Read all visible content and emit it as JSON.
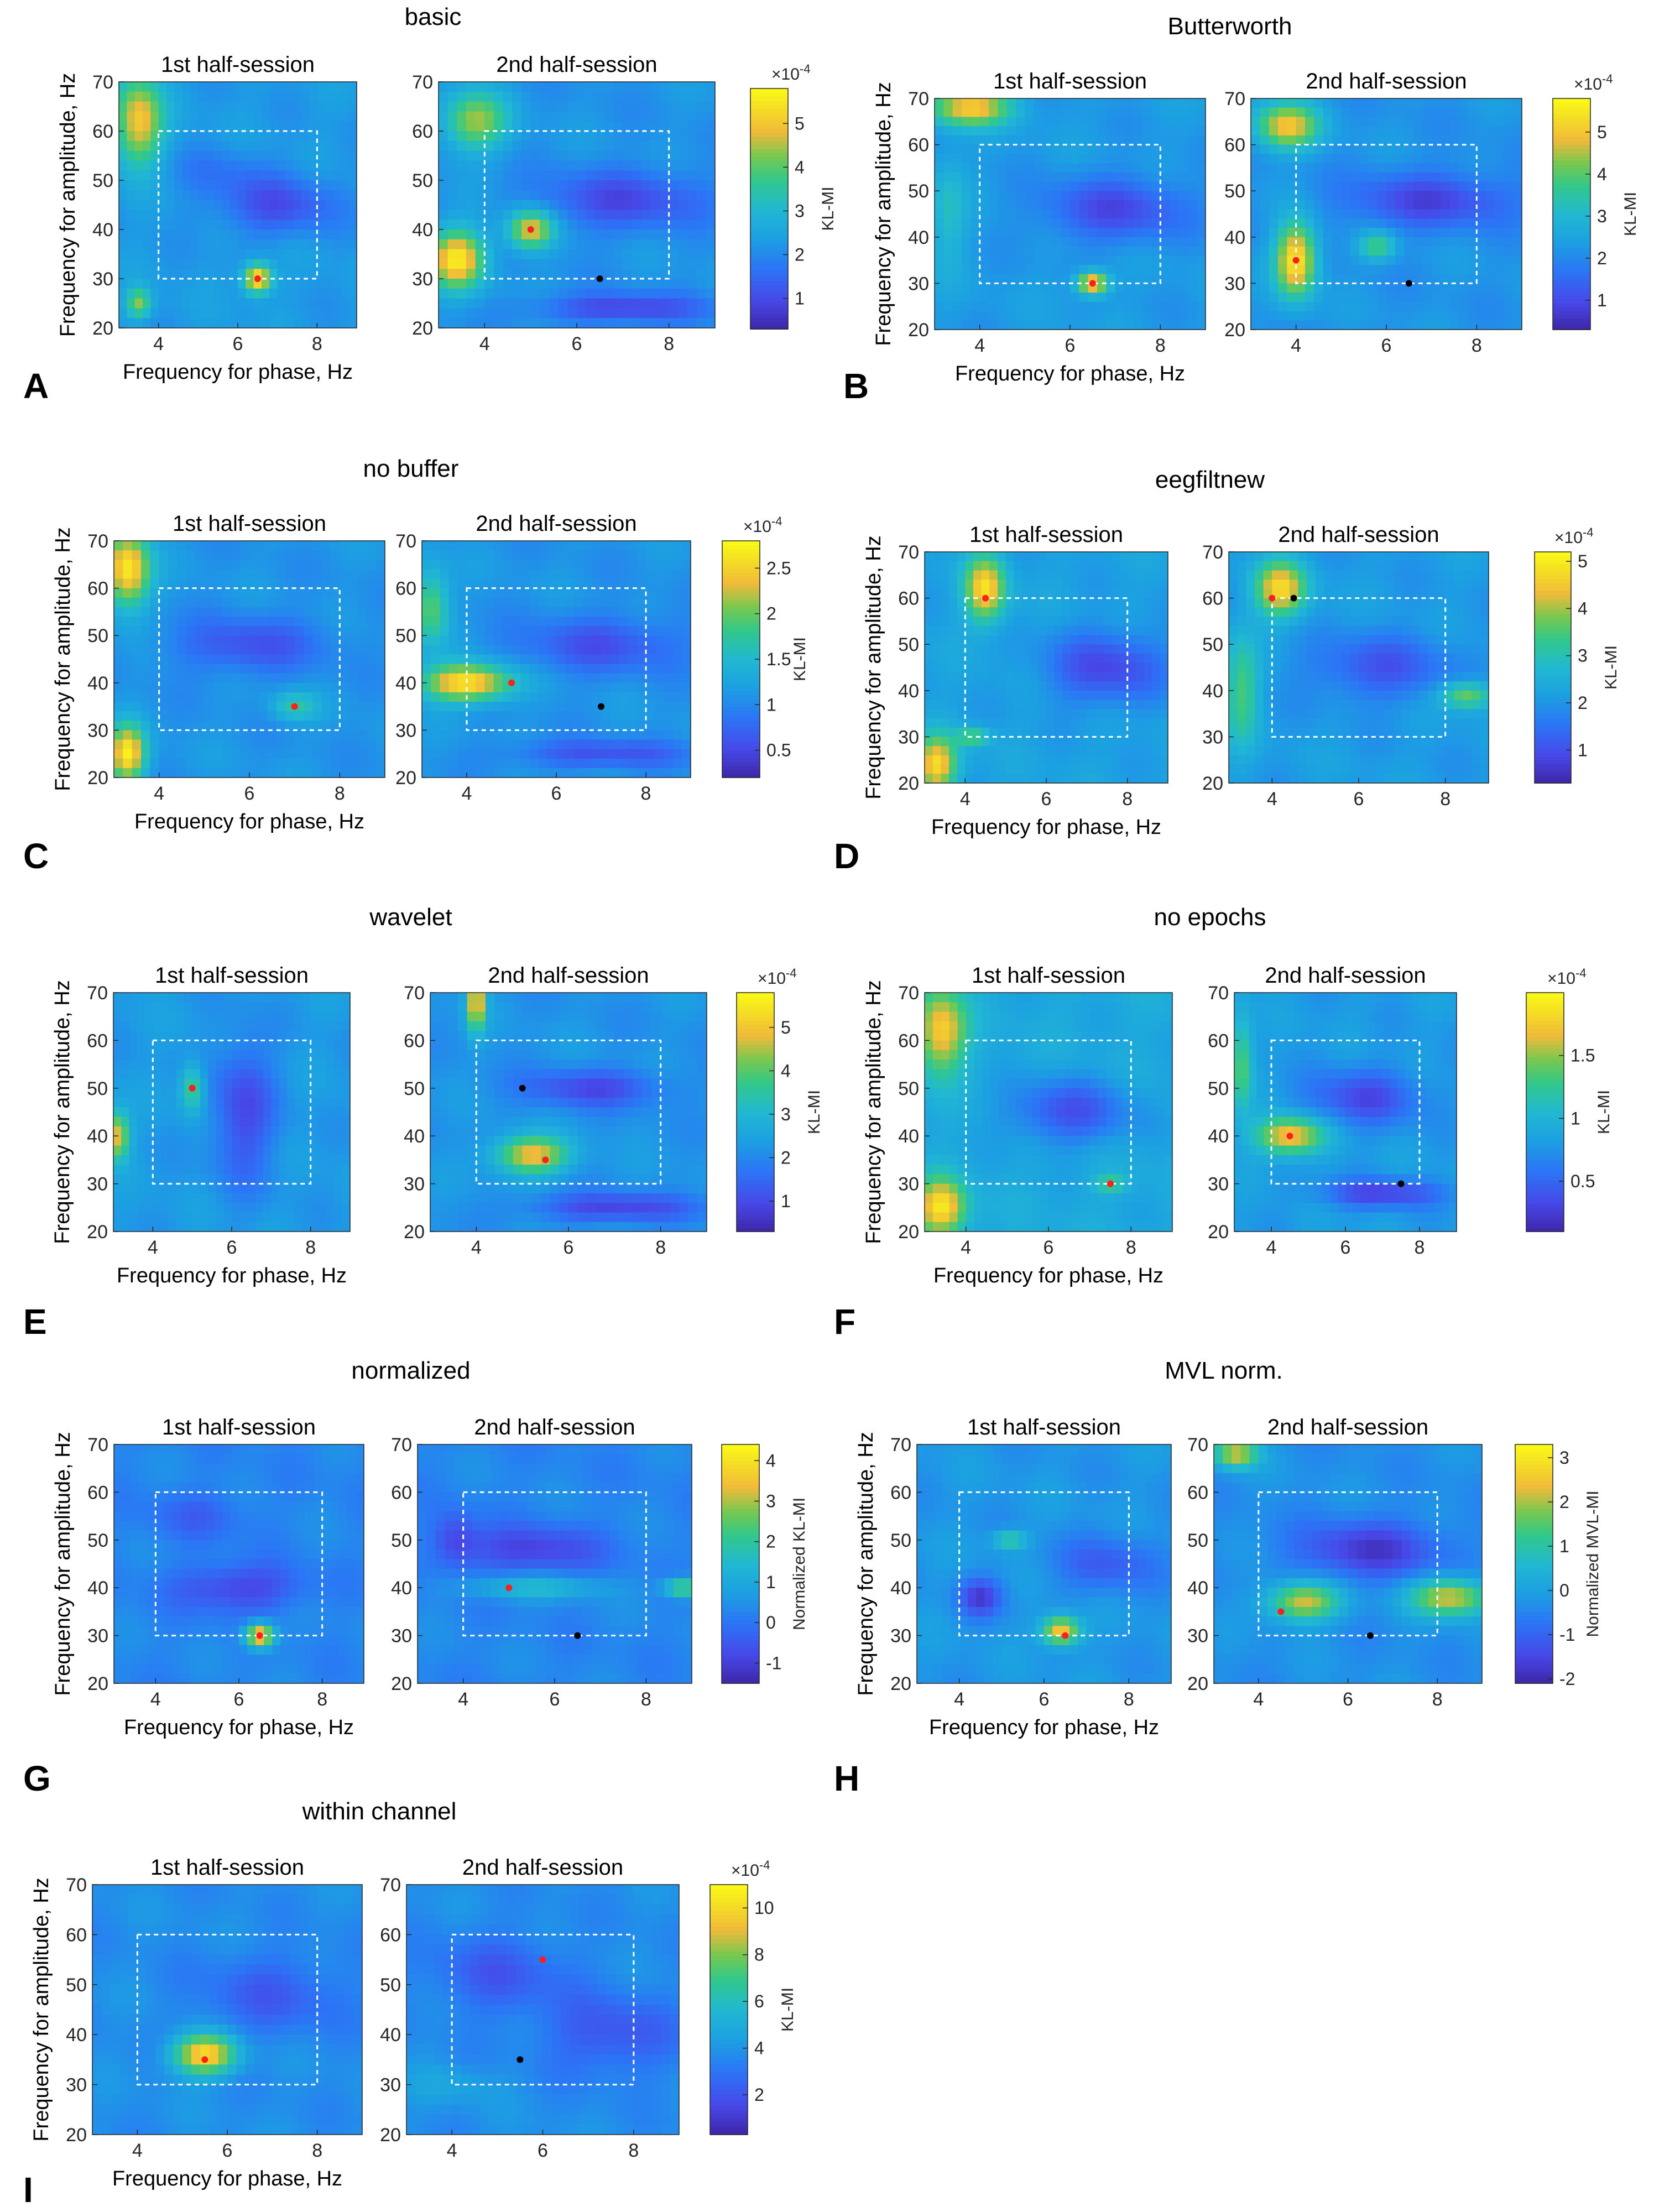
{
  "figure": {
    "panel_title_1": "1st half-session",
    "panel_title_2": "2nd half-session",
    "xlabel": "Frequency for phase, Hz",
    "ylabel": "Frequency for amplitude, Hz",
    "colors": {
      "low": "#3e26a8",
      "mid": "#21b8d2",
      "high": "#f9fb15",
      "roi": "#ffffff",
      "peak": "#ff1f1f",
      "ref": "#000000"
    }
  },
  "chart_data": [
    {
      "letter": "A",
      "title": "basic",
      "type": "heatmap",
      "xlim": [
        3,
        9
      ],
      "ylim": [
        20,
        70
      ],
      "xticks": [
        4,
        6,
        8
      ],
      "yticks": [
        20,
        30,
        40,
        50,
        60,
        70
      ],
      "roi": {
        "x": [
          4,
          8
        ],
        "y": [
          30,
          60
        ]
      },
      "colorbar": {
        "label": "KL-MI",
        "multiplier": "×10",
        "exponent": "-4",
        "range": [
          0.3,
          5.8
        ],
        "ticks": [
          "1",
          "2",
          "3",
          "4",
          "5"
        ],
        "tick_values": [
          1,
          2,
          3,
          4,
          5
        ]
      },
      "halves": [
        {
          "peak": [
            6.5,
            30
          ],
          "background": 2.3,
          "blobs": [
            [
              6.5,
              30,
              0.35,
              3,
              3.4
            ],
            [
              3.5,
              62,
              0.6,
              9,
              2.8
            ],
            [
              3.5,
              25,
              0.3,
              3,
              2
            ],
            [
              7,
              45,
              1.5,
              6,
              -1.2
            ],
            [
              5.5,
              52,
              1.2,
              5,
              -0.5
            ]
          ]
        },
        {
          "peak": [
            5,
            40
          ],
          "ref": [
            6.5,
            30
          ],
          "background": 2.2,
          "blobs": [
            [
              3.4,
              34,
              0.6,
              6,
              3.3
            ],
            [
              5,
              40,
              0.5,
              4,
              2.8
            ],
            [
              3.8,
              62,
              0.7,
              6,
              2.2
            ],
            [
              7,
              46,
              1.8,
              6,
              -1.2
            ],
            [
              7,
              24,
              1.8,
              3,
              -1.3
            ]
          ]
        }
      ]
    },
    {
      "letter": "B",
      "title": "Butterworth",
      "type": "heatmap",
      "xlim": [
        3,
        9
      ],
      "ylim": [
        20,
        70
      ],
      "xticks": [
        4,
        6,
        8
      ],
      "yticks": [
        20,
        30,
        40,
        50,
        60,
        70
      ],
      "roi": {
        "x": [
          4,
          8
        ],
        "y": [
          30,
          60
        ]
      },
      "colorbar": {
        "label": "KL-MI",
        "multiplier": "×10",
        "exponent": "-4",
        "range": [
          0.3,
          5.8
        ],
        "ticks": [
          "1",
          "2",
          "3",
          "4",
          "5"
        ],
        "tick_values": [
          1,
          2,
          3,
          4,
          5
        ]
      },
      "halves": [
        {
          "peak": [
            6.5,
            30
          ],
          "background": 2.3,
          "blobs": [
            [
              6.5,
              30,
              0.35,
              2.5,
              3.2
            ],
            [
              3.8,
              68,
              0.9,
              4,
              2.8
            ],
            [
              7,
              46,
              1.6,
              7,
              -1.3
            ],
            [
              3.3,
              45,
              0.4,
              12,
              0.9
            ]
          ]
        },
        {
          "peak": [
            4,
            35
          ],
          "ref": [
            6.5,
            30
          ],
          "background": 2.2,
          "blobs": [
            [
              4,
              35,
              0.45,
              8,
              3.4
            ],
            [
              3.8,
              64,
              0.7,
              5,
              2.8
            ],
            [
              5.8,
              38,
              0.4,
              3,
              1.6
            ],
            [
              7,
              48,
              1.8,
              6,
              -1.3
            ]
          ]
        }
      ]
    },
    {
      "letter": "C",
      "title": "no buffer",
      "type": "heatmap",
      "xlim": [
        3,
        9
      ],
      "ylim": [
        20,
        70
      ],
      "xticks": [
        4,
        6,
        8
      ],
      "yticks": [
        20,
        30,
        40,
        50,
        60,
        70
      ],
      "roi": {
        "x": [
          4,
          8
        ],
        "y": [
          30,
          60
        ]
      },
      "colorbar": {
        "label": "KL-MI",
        "multiplier": "×10",
        "exponent": "-4",
        "range": [
          0.2,
          2.8
        ],
        "ticks": [
          "0.5",
          "1",
          "1.5",
          "2",
          "2.5"
        ],
        "tick_values": [
          0.5,
          1,
          1.5,
          2,
          2.5
        ]
      },
      "halves": [
        {
          "peak": [
            7,
            35
          ],
          "background": 1.1,
          "blobs": [
            [
              3.3,
              64,
              0.5,
              8,
              1.6
            ],
            [
              3.3,
              25,
              0.4,
              6,
              1.6
            ],
            [
              7,
              35,
              0.5,
              3,
              0.6
            ],
            [
              6,
              48,
              1.6,
              6,
              -0.5
            ]
          ]
        },
        {
          "peak": [
            5,
            40
          ],
          "ref": [
            7,
            35
          ],
          "background": 1.1,
          "blobs": [
            [
              4,
              40,
              1,
              4,
              1.6
            ],
            [
              3.2,
              56,
              0.4,
              8,
              0.9
            ],
            [
              7,
              48,
              1.8,
              6,
              -0.5
            ],
            [
              7,
              25,
              2,
              3,
              -0.5
            ]
          ]
        }
      ]
    },
    {
      "letter": "D",
      "title": "eegfiltnew",
      "type": "heatmap",
      "xlim": [
        3,
        9
      ],
      "ylim": [
        20,
        70
      ],
      "xticks": [
        4,
        6,
        8
      ],
      "yticks": [
        20,
        30,
        40,
        50,
        60,
        70
      ],
      "roi": {
        "x": [
          4,
          8
        ],
        "y": [
          30,
          60
        ]
      },
      "colorbar": {
        "label": "KL-MI",
        "multiplier": "×10",
        "exponent": "-4",
        "range": [
          0.3,
          5.2
        ],
        "ticks": [
          "1",
          "2",
          "3",
          "4",
          "5"
        ],
        "tick_values": [
          1,
          2,
          3,
          4,
          5
        ]
      },
      "halves": [
        {
          "peak": [
            4.5,
            60
          ],
          "background": 2.2,
          "blobs": [
            [
              4.5,
              62,
              0.5,
              7,
              2.6
            ],
            [
              3.3,
              24,
              0.5,
              6,
              2.6
            ],
            [
              4.2,
              30,
              0.4,
              2,
              1.4
            ],
            [
              7.5,
              45,
              1.5,
              8,
              -1.3
            ]
          ]
        },
        {
          "peak": [
            4,
            60
          ],
          "ref": [
            4.5,
            60
          ],
          "background": 2.1,
          "blobs": [
            [
              4.2,
              62,
              0.6,
              6,
              2.6
            ],
            [
              3.3,
              40,
              0.4,
              12,
              1.4
            ],
            [
              8.5,
              39,
              0.6,
              3,
              1.8
            ],
            [
              6.5,
              45,
              1.6,
              7,
              -1
            ]
          ]
        }
      ]
    },
    {
      "letter": "E",
      "title": "wavelet",
      "type": "heatmap",
      "xlim": [
        3,
        9
      ],
      "ylim": [
        20,
        70
      ],
      "xticks": [
        4,
        6,
        8
      ],
      "yticks": [
        20,
        30,
        40,
        50,
        60,
        70
      ],
      "roi": {
        "x": [
          4,
          8
        ],
        "y": [
          30,
          60
        ]
      },
      "colorbar": {
        "label": "KL-MI",
        "multiplier": "×10",
        "exponent": "-4",
        "range": [
          0.3,
          5.8
        ],
        "ticks": [
          "1",
          "2",
          "3",
          "4",
          "5"
        ],
        "tick_values": [
          1,
          2,
          3,
          4,
          5
        ]
      },
      "halves": [
        {
          "peak": [
            5,
            50
          ],
          "background": 2.3,
          "blobs": [
            [
              5,
              50,
              0.3,
              5,
              1.6
            ],
            [
              3.1,
              40,
              0.3,
              5,
              2.6
            ],
            [
              6.3,
              45,
              0.8,
              15,
              -1.3
            ]
          ]
        },
        {
          "peak": [
            5.5,
            35
          ],
          "ref": [
            5,
            50
          ],
          "background": 2.2,
          "blobs": [
            [
              5.2,
              36,
              0.8,
              4,
              2.8
            ],
            [
              4,
              68,
              0.2,
              6,
              3
            ],
            [
              6.5,
              50,
              1.5,
              4,
              -1.2
            ],
            [
              7,
              25,
              1.8,
              3,
              -1.3
            ]
          ]
        }
      ]
    },
    {
      "letter": "F",
      "title": "no epochs",
      "type": "heatmap",
      "xlim": [
        3,
        9
      ],
      "ylim": [
        20,
        70
      ],
      "xticks": [
        4,
        6,
        8
      ],
      "yticks": [
        20,
        30,
        40,
        50,
        60,
        70
      ],
      "roi": {
        "x": [
          4,
          8
        ],
        "y": [
          30,
          60
        ]
      },
      "colorbar": {
        "label": "KL-MI",
        "multiplier": "×10",
        "exponent": "-4",
        "range": [
          0.1,
          2
        ],
        "ticks": [
          "0.5",
          "1",
          "1.5"
        ],
        "tick_values": [
          0.5,
          1,
          1.5
        ]
      },
      "halves": [
        {
          "peak": [
            7.5,
            30
          ],
          "background": 0.9,
          "blobs": [
            [
              3.4,
              62,
              0.6,
              9,
              0.9
            ],
            [
              3.4,
              25,
              0.6,
              6,
              1
            ],
            [
              7.5,
              30,
              0.4,
              2,
              0.4
            ],
            [
              6.5,
              45,
              1.5,
              7,
              -0.5
            ]
          ]
        },
        {
          "peak": [
            4.5,
            40
          ],
          "ref": [
            7.5,
            30
          ],
          "background": 0.8,
          "blobs": [
            [
              4.5,
              40,
              0.9,
              4,
              1
            ],
            [
              3.2,
              55,
              0.3,
              10,
              0.6
            ],
            [
              6.5,
              48,
              1.5,
              6,
              -0.45
            ],
            [
              7,
              28,
              1.6,
              3,
              -0.5
            ]
          ]
        }
      ]
    },
    {
      "letter": "G",
      "title": "normalized",
      "type": "heatmap",
      "xlim": [
        3,
        9
      ],
      "ylim": [
        20,
        70
      ],
      "xticks": [
        4,
        6,
        8
      ],
      "yticks": [
        20,
        30,
        40,
        50,
        60,
        70
      ],
      "roi": {
        "x": [
          4,
          8
        ],
        "y": [
          30,
          60
        ]
      },
      "colorbar": {
        "label": "Normalized KL-MI",
        "multiplier": "",
        "exponent": "",
        "range": [
          -1.5,
          4.4
        ],
        "ticks": [
          "-1",
          "0",
          "1",
          "2",
          "3",
          "4"
        ],
        "tick_values": [
          -1,
          0,
          1,
          2,
          3,
          4
        ]
      },
      "halves": [
        {
          "peak": [
            6.5,
            30
          ],
          "background": 0.3,
          "blobs": [
            [
              6.5,
              30,
              0.35,
              2.5,
              3.8
            ],
            [
              6,
              40,
              1.5,
              5,
              -1.2
            ],
            [
              5,
              55,
              1.2,
              5,
              -0.6
            ]
          ]
        },
        {
          "peak": [
            5,
            40
          ],
          "ref": [
            6.5,
            30
          ],
          "background": 0.3,
          "blobs": [
            [
              5.5,
              40,
              1.5,
              2.5,
              1.2
            ],
            [
              8.8,
              40,
              0.4,
              2,
              2.4
            ],
            [
              5.5,
              48,
              1.5,
              5,
              -1.2
            ],
            [
              3.8,
              50,
              0.5,
              6,
              -1
            ]
          ]
        }
      ]
    },
    {
      "letter": "H",
      "title": "MVL norm.",
      "type": "heatmap",
      "xlim": [
        3,
        9
      ],
      "ylim": [
        20,
        70
      ],
      "xticks": [
        4,
        6,
        8
      ],
      "yticks": [
        20,
        30,
        40,
        50,
        60,
        70
      ],
      "roi": {
        "x": [
          4,
          8
        ],
        "y": [
          30,
          60
        ]
      },
      "colorbar": {
        "label": "Normalized MVL-MI",
        "multiplier": "",
        "exponent": "",
        "range": [
          -2.1,
          3.3
        ],
        "ticks": [
          "-2",
          "-1",
          "0",
          "1",
          "2",
          "3"
        ],
        "tick_values": [
          -2,
          -1,
          0,
          1,
          2,
          3
        ]
      },
      "halves": [
        {
          "peak": [
            6.5,
            30
          ],
          "background": -0.2,
          "blobs": [
            [
              6.4,
              31,
              0.45,
              3,
              3
            ],
            [
              5.2,
              50,
              0.4,
              2,
              1.5
            ],
            [
              4.5,
              38,
              0.5,
              4,
              -1.4
            ],
            [
              7.5,
              45,
              1.2,
              6,
              -0.9
            ]
          ]
        },
        {
          "peak": [
            4.5,
            35
          ],
          "ref": [
            6.5,
            30
          ],
          "background": -0.3,
          "blobs": [
            [
              5,
              37,
              0.8,
              4,
              2.6
            ],
            [
              8.3,
              38,
              0.9,
              4,
              2.6
            ],
            [
              3.5,
              68,
              0.5,
              3,
              2.6
            ],
            [
              6.5,
              48,
              1.6,
              6,
              -1.4
            ]
          ]
        }
      ]
    },
    {
      "letter": "I",
      "title": "within channel",
      "type": "heatmap",
      "xlim": [
        3,
        9
      ],
      "ylim": [
        20,
        70
      ],
      "xticks": [
        4,
        6,
        8
      ],
      "yticks": [
        20,
        30,
        40,
        50,
        60,
        70
      ],
      "roi": {
        "x": [
          4,
          8
        ],
        "y": [
          30,
          60
        ]
      },
      "colorbar": {
        "label": "KL-MI",
        "multiplier": "×10",
        "exponent": "-4",
        "range": [
          0.3,
          11
        ],
        "ticks": [
          "2",
          "4",
          "6",
          "8",
          "10"
        ],
        "tick_values": [
          2,
          4,
          6,
          8,
          10
        ]
      },
      "halves": [
        {
          "peak": [
            5.5,
            35
          ],
          "background": 3.8,
          "blobs": [
            [
              5.5,
              36,
              0.7,
              4,
              6.5
            ],
            [
              7,
              48,
              1.6,
              8,
              -1.5
            ]
          ]
        },
        {
          "peak": [
            6,
            55
          ],
          "ref": [
            5.5,
            35
          ],
          "background": 3.8,
          "blobs": [
            [
              5,
              52,
              1.5,
              8,
              -1.6
            ],
            [
              7.5,
              40,
              1.5,
              8,
              -1.8
            ],
            [
              4,
              30,
              1,
              4,
              0.8
            ]
          ]
        }
      ]
    }
  ]
}
